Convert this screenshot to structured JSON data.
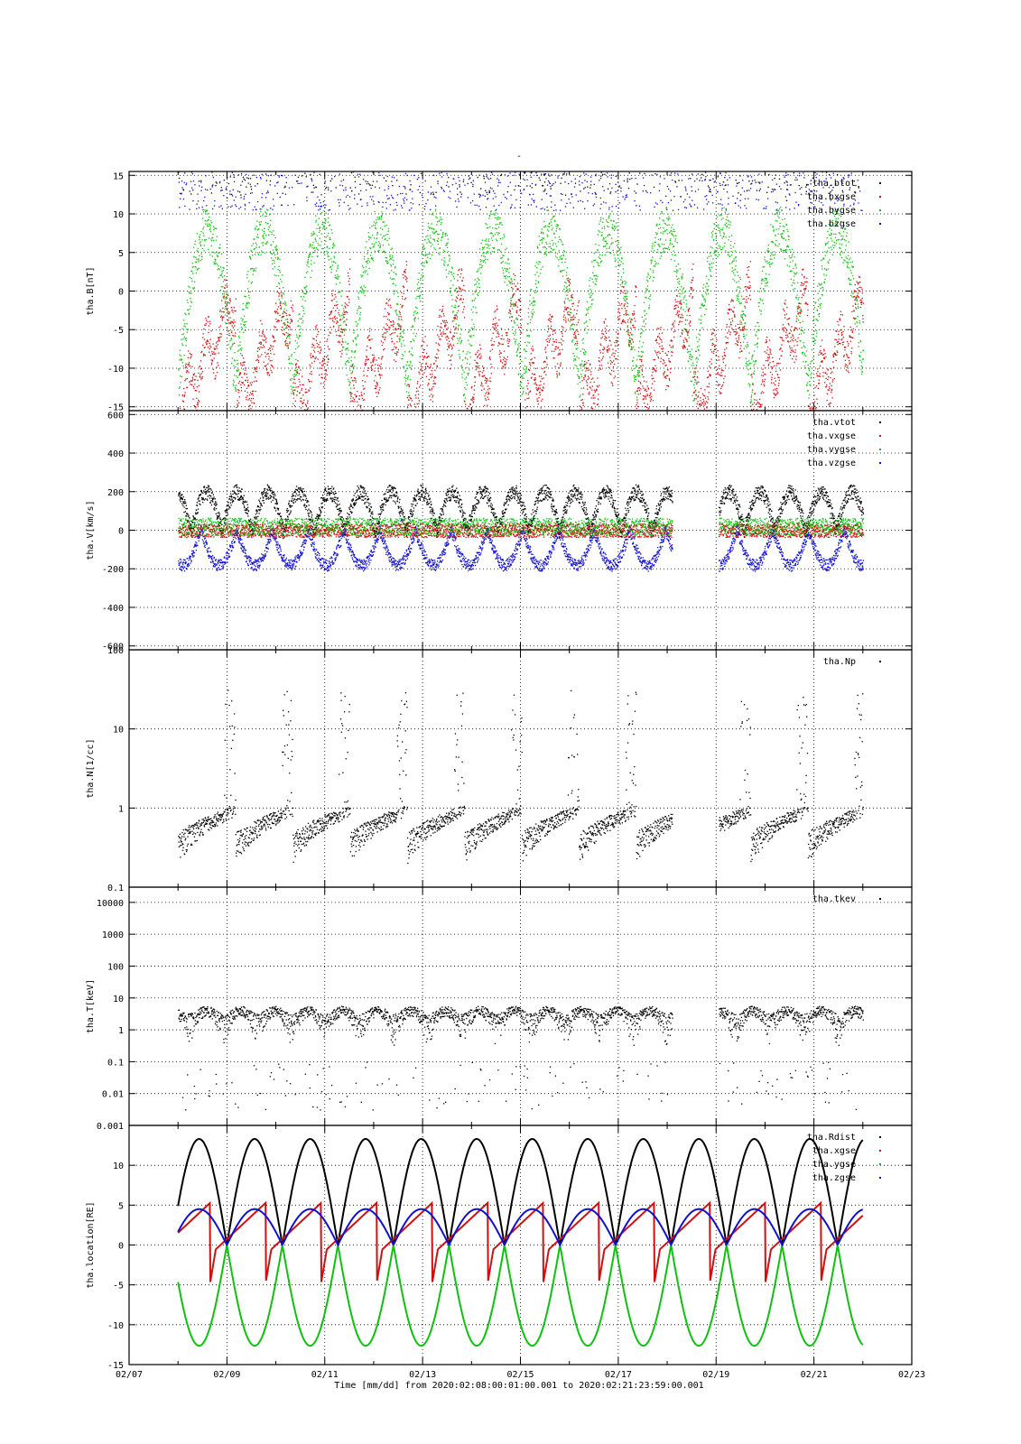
{
  "title": "-",
  "x_axis": {
    "ticks": [
      "02/07",
      "02/09",
      "02/11",
      "02/13",
      "02/15",
      "02/17",
      "02/19",
      "02/21",
      "02/23"
    ],
    "xlabel": "Time [mm/dd]  from 2020:02:08:00:01:00.001  to  2020:02:21:23:59:00.001"
  },
  "colors": {
    "black": "#000000",
    "red": "#d01010",
    "green": "#10c010",
    "blue": "#1010d0"
  },
  "chart_data": [
    {
      "type": "scatter",
      "ylabel": "tha.B[nT]",
      "ylim": [
        -15.5,
        15.5
      ],
      "yticks": [
        -15,
        -10,
        -5,
        0,
        5,
        10,
        15
      ],
      "xlim": [
        "2020-02-07",
        "2020-02-23"
      ],
      "grid": true,
      "legend_position": "top-right",
      "series": [
        {
          "name": "tha.btot",
          "color": "#000000"
        },
        {
          "name": "tha.bxgse",
          "color": "#d01010"
        },
        {
          "name": "tha.bygse",
          "color": "#10c010"
        },
        {
          "name": "tha.bzgse",
          "color": "#1010d0"
        }
      ]
    },
    {
      "type": "scatter",
      "ylabel": "tha.V[km/s]",
      "ylim": [
        -620,
        620
      ],
      "yticks": [
        -600,
        -400,
        -200,
        0,
        200,
        400,
        600
      ],
      "xlim": [
        "2020-02-07",
        "2020-02-23"
      ],
      "grid": true,
      "legend_position": "top-right",
      "series": [
        {
          "name": "tha.vtot",
          "color": "#000000"
        },
        {
          "name": "tha.vxgse",
          "color": "#d01010"
        },
        {
          "name": "tha.vygse",
          "color": "#10c010"
        },
        {
          "name": "tha.vzgse",
          "color": "#1010d0"
        }
      ]
    },
    {
      "type": "scatter",
      "ylabel": "tha.N[1/cc]",
      "yscale": "log",
      "ylim": [
        0.1,
        100
      ],
      "yticks": [
        "0.1",
        "1",
        "10",
        "100"
      ],
      "xlim": [
        "2020-02-07",
        "2020-02-23"
      ],
      "grid": true,
      "legend_position": "top-right",
      "series": [
        {
          "name": "tha.Np",
          "color": "#000000"
        }
      ]
    },
    {
      "type": "scatter",
      "ylabel": "tha.T[keV]",
      "yscale": "log",
      "ylim": [
        0.001,
        30000
      ],
      "yticks": [
        "0.001",
        "0.01",
        "0.1",
        "1",
        "10",
        "100",
        "1000",
        "10000"
      ],
      "xlim": [
        "2020-02-07",
        "2020-02-23"
      ],
      "grid": true,
      "legend_position": "top-right",
      "series": [
        {
          "name": "tha.tkev",
          "color": "#000000"
        }
      ]
    },
    {
      "type": "line",
      "ylabel": "tha.location[RE]",
      "ylim": [
        -15,
        15
      ],
      "yticks": [
        -15,
        -10,
        -5,
        0,
        5,
        10
      ],
      "xlim": [
        "2020-02-07",
        "2020-02-23"
      ],
      "grid": true,
      "legend_position": "top-right",
      "series": [
        {
          "name": "tha.Rdist",
          "color": "#000000"
        },
        {
          "name": "tha.xgse",
          "color": "#d01010"
        },
        {
          "name": "tha.ygse",
          "color": "#10c010"
        },
        {
          "name": "tha.zgse",
          "color": "#1010d0"
        }
      ]
    }
  ]
}
